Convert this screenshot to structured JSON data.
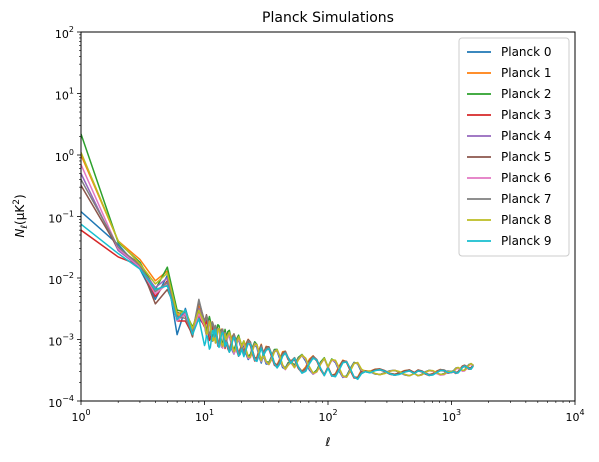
{
  "chart_data": {
    "type": "line",
    "title": "Planck Simulations",
    "xlabel": "ℓ",
    "ylabel_main": "N",
    "ylabel_sub": "ℓ",
    "ylabel_paren_open": "(μK",
    "ylabel_sup": "2",
    "ylabel_paren_close": ")",
    "xscale": "log",
    "yscale": "log",
    "xlim": [
      1,
      10000
    ],
    "ylim": [
      0.0001,
      100
    ],
    "grid": false,
    "legend_position": "upper right",
    "x_ticks": [
      {
        "value": 1,
        "base": "10",
        "exp": "0"
      },
      {
        "value": 10,
        "base": "10",
        "exp": "1"
      },
      {
        "value": 100,
        "base": "10",
        "exp": "2"
      },
      {
        "value": 1000,
        "base": "10",
        "exp": "3"
      },
      {
        "value": 10000,
        "base": "10",
        "exp": "4"
      }
    ],
    "y_ticks": [
      {
        "value": 0.0001,
        "base": "10",
        "exp": "−4"
      },
      {
        "value": 0.001,
        "base": "10",
        "exp": "−3"
      },
      {
        "value": 0.01,
        "base": "10",
        "exp": "−2"
      },
      {
        "value": 0.1,
        "base": "10",
        "exp": "−1"
      },
      {
        "value": 1,
        "base": "10",
        "exp": "0"
      },
      {
        "value": 10,
        "base": "10",
        "exp": "1"
      },
      {
        "value": 100,
        "base": "10",
        "exp": "2"
      }
    ],
    "series": [
      {
        "name": "Planck 0",
        "color": "#1f77b4",
        "x": [
          1,
          2,
          3,
          4,
          5,
          6,
          7,
          8,
          9,
          10,
          12,
          15,
          20,
          30,
          50,
          100,
          200,
          500,
          1000,
          1500
        ],
        "y": [
          0.12,
          0.035,
          0.014,
          0.0045,
          0.011,
          0.0012,
          0.0032,
          0.0013,
          0.0022,
          0.0017,
          0.0012,
          0.0009,
          0.0007,
          0.00055,
          0.00042,
          0.00035,
          0.0003,
          0.00028,
          0.0003,
          0.00038
        ]
      },
      {
        "name": "Planck 1",
        "color": "#ff7f0e",
        "x": [
          1,
          2,
          3,
          4,
          5,
          6,
          7,
          8,
          9,
          10,
          12,
          15,
          20,
          30,
          50,
          100,
          200,
          500,
          1000,
          1500
        ],
        "y": [
          1.0,
          0.04,
          0.02,
          0.009,
          0.013,
          0.0025,
          0.0025,
          0.0015,
          0.0035,
          0.0019,
          0.0013,
          0.001,
          0.0008,
          0.0006,
          0.00045,
          0.00036,
          0.00031,
          0.00029,
          0.0003,
          0.00039
        ]
      },
      {
        "name": "Planck 2",
        "color": "#2ca02c",
        "x": [
          1,
          2,
          3,
          4,
          5,
          6,
          7,
          8,
          9,
          10,
          12,
          15,
          20,
          30,
          50,
          100,
          200,
          500,
          1000,
          1500
        ],
        "y": [
          2.2,
          0.038,
          0.018,
          0.0065,
          0.015,
          0.003,
          0.0028,
          0.0016,
          0.0028,
          0.0021,
          0.0014,
          0.0011,
          0.0008,
          0.0006,
          0.00044,
          0.00036,
          0.0003,
          0.00028,
          0.0003,
          0.00038
        ]
      },
      {
        "name": "Planck 3",
        "color": "#d62728",
        "x": [
          1,
          2,
          3,
          4,
          5,
          6,
          7,
          8,
          9,
          10,
          12,
          15,
          20,
          30,
          50,
          100,
          200,
          500,
          1000,
          1500
        ],
        "y": [
          0.06,
          0.022,
          0.016,
          0.005,
          0.009,
          0.002,
          0.002,
          0.0012,
          0.0025,
          0.0016,
          0.0011,
          0.0009,
          0.0007,
          0.00055,
          0.00042,
          0.00035,
          0.0003,
          0.00028,
          0.00029,
          0.00037
        ]
      },
      {
        "name": "Planck 4",
        "color": "#9467bd",
        "x": [
          1,
          2,
          3,
          4,
          5,
          6,
          7,
          8,
          9,
          10,
          12,
          15,
          20,
          30,
          50,
          100,
          200,
          500,
          1000,
          1500
        ],
        "y": [
          0.5,
          0.028,
          0.015,
          0.007,
          0.01,
          0.0022,
          0.0027,
          0.0014,
          0.0032,
          0.0018,
          0.0012,
          0.001,
          0.00075,
          0.00058,
          0.00043,
          0.00035,
          0.0003,
          0.00028,
          0.0003,
          0.00038
        ]
      },
      {
        "name": "Planck 5",
        "color": "#8c564b",
        "x": [
          1,
          2,
          3,
          4,
          5,
          6,
          7,
          8,
          9,
          10,
          12,
          15,
          20,
          30,
          50,
          100,
          200,
          500,
          1000,
          1500
        ],
        "y": [
          0.32,
          0.03,
          0.017,
          0.0038,
          0.0065,
          0.0028,
          0.0024,
          0.0011,
          0.0042,
          0.002,
          0.0013,
          0.001,
          0.0008,
          0.0006,
          0.00044,
          0.00036,
          0.00031,
          0.00029,
          0.0003,
          0.00039
        ]
      },
      {
        "name": "Planck 6",
        "color": "#e377c2",
        "x": [
          1,
          2,
          3,
          4,
          5,
          6,
          7,
          8,
          9,
          10,
          12,
          15,
          20,
          30,
          50,
          100,
          200,
          500,
          1000,
          1500
        ],
        "y": [
          0.7,
          0.03,
          0.015,
          0.0055,
          0.008,
          0.002,
          0.0026,
          0.0013,
          0.0026,
          0.0017,
          0.0012,
          0.0009,
          0.00072,
          0.00056,
          0.00042,
          0.00035,
          0.0003,
          0.00028,
          0.00029,
          0.00037
        ]
      },
      {
        "name": "Planck 7",
        "color": "#7f7f7f",
        "x": [
          1,
          2,
          3,
          4,
          5,
          6,
          7,
          8,
          9,
          10,
          12,
          15,
          20,
          30,
          50,
          100,
          200,
          500,
          1000,
          1500
        ],
        "y": [
          0.4,
          0.032,
          0.016,
          0.006,
          0.0085,
          0.0024,
          0.0022,
          0.0013,
          0.0045,
          0.0019,
          0.0013,
          0.001,
          0.00078,
          0.00058,
          0.00043,
          0.00035,
          0.0003,
          0.00028,
          0.0003,
          0.00038
        ]
      },
      {
        "name": "Planck 8",
        "color": "#bcbd22",
        "x": [
          1,
          2,
          3,
          4,
          5,
          6,
          7,
          8,
          9,
          10,
          12,
          15,
          20,
          30,
          50,
          100,
          200,
          500,
          1000,
          1500
        ],
        "y": [
          1.1,
          0.04,
          0.017,
          0.008,
          0.012,
          0.0026,
          0.0029,
          0.0015,
          0.003,
          0.0018,
          0.0012,
          0.001,
          0.00076,
          0.00057,
          0.00043,
          0.00036,
          0.0003,
          0.00028,
          0.0003,
          0.00038
        ]
      },
      {
        "name": "Planck 9",
        "color": "#17becf",
        "x": [
          1,
          2,
          3,
          4,
          5,
          6,
          7,
          8,
          9,
          10,
          12,
          15,
          20,
          30,
          50,
          100,
          200,
          500,
          1000,
          1500
        ],
        "y": [
          0.075,
          0.025,
          0.014,
          0.0065,
          0.0075,
          0.0021,
          0.003,
          0.0012,
          0.0022,
          0.0008,
          0.0011,
          0.0009,
          0.0007,
          0.00055,
          0.00041,
          0.00034,
          0.0003,
          0.00028,
          0.00029,
          0.00037
        ]
      }
    ]
  }
}
